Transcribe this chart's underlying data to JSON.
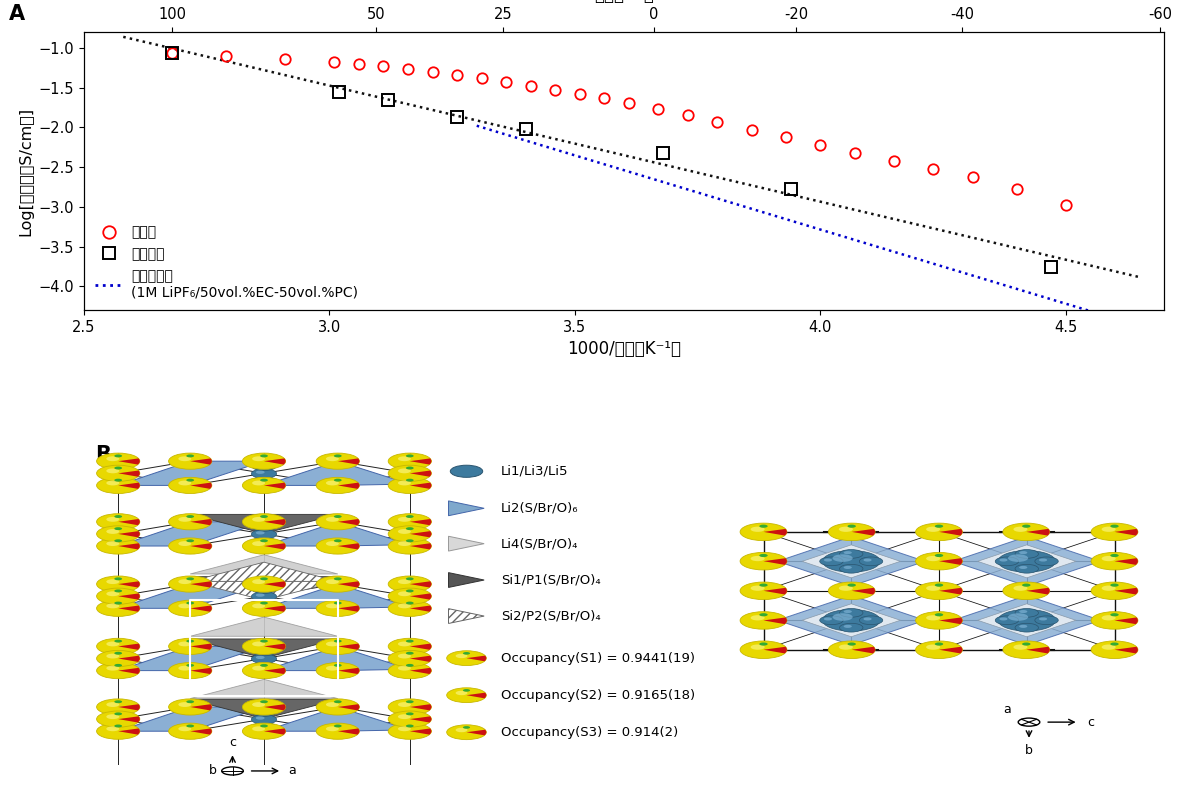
{
  "top_axis_label": "温度（°C）",
  "top_axis_ticks_celsius": [
    100,
    50,
    25,
    0,
    -20,
    -40,
    -60
  ],
  "xlabel": "1000/温度（K⁻¹）",
  "ylabel": "Log[導電率（S/cm）]",
  "xlim": [
    2.5,
    4.7
  ],
  "ylim": [
    -4.3,
    -0.8
  ],
  "yticks": [
    -1.0,
    -1.5,
    -2.0,
    -2.5,
    -3.0,
    -3.5,
    -4.0
  ],
  "xticks": [
    2.5,
    3.0,
    3.5,
    4.0,
    4.5
  ],
  "new_x": [
    2.68,
    2.79,
    2.91,
    3.01,
    3.06,
    3.11,
    3.16,
    3.21,
    3.26,
    3.31,
    3.36,
    3.41,
    3.46,
    3.51,
    3.56,
    3.61,
    3.67,
    3.73,
    3.79,
    3.86,
    3.93,
    4.0,
    4.07,
    4.15,
    4.23,
    4.31,
    4.4,
    4.5
  ],
  "new_y": [
    -1.06,
    -1.1,
    -1.14,
    -1.18,
    -1.2,
    -1.23,
    -1.26,
    -1.3,
    -1.34,
    -1.38,
    -1.43,
    -1.48,
    -1.53,
    -1.58,
    -1.63,
    -1.69,
    -1.77,
    -1.85,
    -1.93,
    -2.03,
    -2.12,
    -2.22,
    -2.32,
    -2.42,
    -2.52,
    -2.63,
    -2.78,
    -2.98
  ],
  "old_x": [
    2.68,
    3.02,
    3.12,
    3.26,
    3.4,
    3.68,
    3.94,
    4.47
  ],
  "old_y": [
    -1.07,
    -1.55,
    -1.65,
    -1.87,
    -2.02,
    -2.32,
    -2.77,
    -3.76
  ],
  "elec_x": [
    3.34,
    3.5,
    3.65,
    3.8,
    3.95,
    4.1,
    4.25,
    4.4,
    4.5
  ],
  "elec_y": [
    -2.18,
    -2.38,
    -2.6,
    -2.83,
    -3.1,
    -3.4,
    -3.7,
    -4.08,
    -4.35
  ],
  "new_color": "#FF0000",
  "old_color": "#000000",
  "elec_color": "#0000CC",
  "legend_new": "新材料",
  "legend_old": "従来材料",
  "legend_elec_line1": "有機電解液",
  "legend_elec_line2": "(1M LiPF₆/50vol.%EC-50vol.%PC)",
  "crystal_labels": [
    "Li1/Li3/Li5",
    "Li2(S/Br/O)₆",
    "Li4(S/Br/O)₄",
    "Si1/P1(S/Br/O)₄",
    "Si2/P2(S/Br/O)₄"
  ],
  "occupancy_texts": [
    "Occupancy(S1) = 0.9441(19)",
    "Occupancy(S2) = 0.9165(18)",
    "Occupancy(S3) = 0.914(2)"
  ],
  "li_color": "#3d7a9e",
  "blue_poly_color": "#8bafd4",
  "blue_poly_edge": "#4466aa",
  "gray_dark_color": "#666666",
  "gray_light_color": "#c8c8c8",
  "yellow_color": "#e8d800",
  "yellow_edge": "#c8b800",
  "red_color": "#cc1111"
}
